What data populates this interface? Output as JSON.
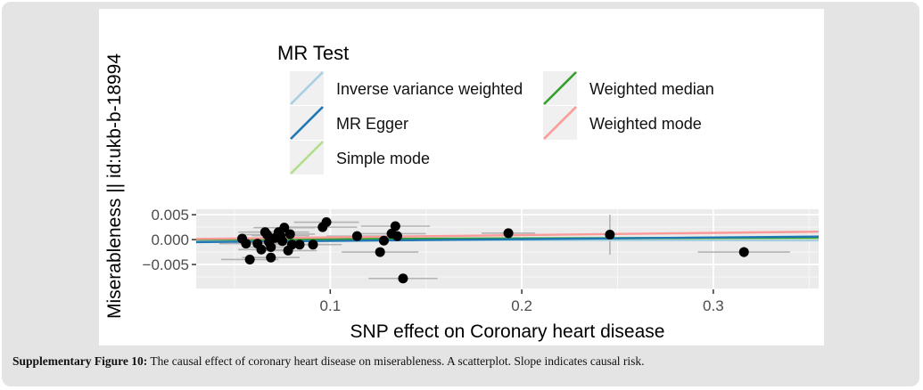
{
  "chart_data": {
    "type": "scatter",
    "xlabel": "SNP effect on Coronary heart disease",
    "ylabel": "Miserableness || id:ukb-b-18994",
    "xlim": [
      0.03,
      0.355
    ],
    "ylim": [
      -0.01,
      0.0061
    ],
    "x_ticks": [
      0.1,
      0.2,
      0.3
    ],
    "x_tick_labels": [
      "0.1",
      "0.2",
      "0.3"
    ],
    "y_ticks": [
      0.005,
      0.0,
      -0.005
    ],
    "y_tick_labels": [
      "0.005",
      "0.000",
      "-0.005"
    ],
    "grid": true,
    "legend": {
      "title": "MR Test",
      "placement": "top",
      "entries": [
        {
          "name": "Inverse variance weighted",
          "color": "#a6cee3"
        },
        {
          "name": "MR Egger",
          "color": "#1f78b4"
        },
        {
          "name": "Simple mode",
          "color": "#b2df8a"
        },
        {
          "name": "Weighted median",
          "color": "#33a02c"
        },
        {
          "name": "Weighted mode",
          "color": "#fb9a99"
        }
      ]
    },
    "lines": [
      {
        "name": "Inverse variance weighted",
        "color": "#a6cee3",
        "intercept": 0.0,
        "slope": -0.0004
      },
      {
        "name": "MR Egger",
        "color": "#1f78b4",
        "intercept": -0.0006,
        "slope": 0.0034
      },
      {
        "name": "Simple mode",
        "color": "#b2df8a",
        "intercept": 0.0,
        "slope": 0.0008
      },
      {
        "name": "Weighted median",
        "color": "#33a02c",
        "intercept": 0.0,
        "slope": 0.0012
      },
      {
        "name": "Weighted mode",
        "color": "#fb9a99",
        "intercept": 0.0,
        "slope": 0.0045
      }
    ],
    "points": [
      {
        "x": 0.054,
        "y": 0.0002,
        "xerr": 0.012,
        "yerr": 0.0006
      },
      {
        "x": 0.056,
        "y": -0.0008,
        "xerr": 0.014,
        "yerr": 0.0006
      },
      {
        "x": 0.058,
        "y": -0.004,
        "xerr": 0.015,
        "yerr": 0.0007
      },
      {
        "x": 0.062,
        "y": -0.0008,
        "xerr": 0.012,
        "yerr": 0.0006
      },
      {
        "x": 0.064,
        "y": -0.002,
        "xerr": 0.012,
        "yerr": 0.0006
      },
      {
        "x": 0.066,
        "y": 0.0015,
        "xerr": 0.014,
        "yerr": 0.0006
      },
      {
        "x": 0.067,
        "y": 0.001,
        "xerr": 0.013,
        "yerr": 0.0006
      },
      {
        "x": 0.068,
        "y": -0.0005,
        "xerr": 0.014,
        "yerr": 0.0006
      },
      {
        "x": 0.069,
        "y": -0.0015,
        "xerr": 0.013,
        "yerr": 0.0006
      },
      {
        "x": 0.069,
        "y": -0.0036,
        "xerr": 0.015,
        "yerr": 0.0007
      },
      {
        "x": 0.071,
        "y": 0.0003,
        "xerr": 0.016,
        "yerr": 0.0006
      },
      {
        "x": 0.073,
        "y": 0.0015,
        "xerr": 0.016,
        "yerr": 0.0006
      },
      {
        "x": 0.074,
        "y": 0.0008,
        "xerr": 0.015,
        "yerr": 0.0006
      },
      {
        "x": 0.075,
        "y": -0.0003,
        "xerr": 0.014,
        "yerr": 0.0006
      },
      {
        "x": 0.076,
        "y": 0.0024,
        "xerr": 0.016,
        "yerr": 0.0006
      },
      {
        "x": 0.078,
        "y": -0.0022,
        "xerr": 0.015,
        "yerr": 0.0008
      },
      {
        "x": 0.079,
        "y": 0.0011,
        "xerr": 0.013,
        "yerr": 0.0006
      },
      {
        "x": 0.08,
        "y": -0.001,
        "xerr": 0.014,
        "yerr": 0.0006
      },
      {
        "x": 0.084,
        "y": -0.001,
        "xerr": 0.016,
        "yerr": 0.0006
      },
      {
        "x": 0.091,
        "y": -0.001,
        "xerr": 0.015,
        "yerr": 0.0006
      },
      {
        "x": 0.096,
        "y": 0.0025,
        "xerr": 0.018,
        "yerr": 0.0007
      },
      {
        "x": 0.098,
        "y": 0.0035,
        "xerr": 0.017,
        "yerr": 0.0008
      },
      {
        "x": 0.114,
        "y": 0.0007,
        "xerr": 0.016,
        "yerr": 0.0006
      },
      {
        "x": 0.126,
        "y": -0.0025,
        "xerr": 0.02,
        "yerr": 0.0009
      },
      {
        "x": 0.128,
        "y": -0.0002,
        "xerr": 0.018,
        "yerr": 0.0006
      },
      {
        "x": 0.132,
        "y": 0.0012,
        "xerr": 0.018,
        "yerr": 0.0007
      },
      {
        "x": 0.134,
        "y": 0.0027,
        "xerr": 0.018,
        "yerr": 0.0009
      },
      {
        "x": 0.135,
        "y": 0.0007,
        "xerr": 0.018,
        "yerr": 0.0006
      },
      {
        "x": 0.138,
        "y": -0.0078,
        "xerr": 0.018,
        "yerr": 0.0008
      },
      {
        "x": 0.193,
        "y": 0.0013,
        "xerr": 0.014,
        "yerr": 0.0006
      },
      {
        "x": 0.246,
        "y": 0.001,
        "xerr": 0.0,
        "yerr": 0.004
      },
      {
        "x": 0.316,
        "y": -0.0025,
        "xerr": 0.024,
        "yerr": 0.0011
      }
    ]
  },
  "caption": {
    "label": "Supplementary Figure 10:",
    "text": " The causal effect of coronary heart disease on miserableness. A scatterplot. Slope indicates causal risk."
  }
}
